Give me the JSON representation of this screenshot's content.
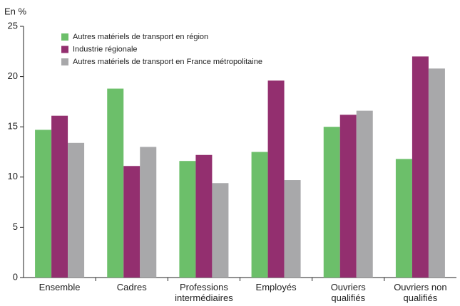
{
  "chart_data": {
    "type": "bar",
    "y_label": "En %",
    "categories": [
      "Ensemble",
      "Cadres",
      "Professions intermédiaires",
      "Employés",
      "Ouvriers qualifiés",
      "Ouvriers non qualifiés"
    ],
    "series": [
      {
        "name": "Autres matériels de transport en région",
        "color": "#6cbf6a",
        "values": [
          14.7,
          18.8,
          11.6,
          12.5,
          15.0,
          11.8
        ]
      },
      {
        "name": "Industrie régionale",
        "color": "#932f6f",
        "values": [
          16.1,
          11.1,
          12.2,
          19.6,
          16.2,
          22.0
        ]
      },
      {
        "name": "Autres matériels de transport en France métropolitaine",
        "color": "#a8a8aa",
        "values": [
          13.4,
          13.0,
          9.4,
          9.7,
          16.6,
          20.8
        ]
      }
    ],
    "ylim": [
      0,
      25
    ],
    "yticks": [
      0,
      5,
      10,
      15,
      20,
      25
    ],
    "grid": false,
    "legend": "top-left"
  }
}
